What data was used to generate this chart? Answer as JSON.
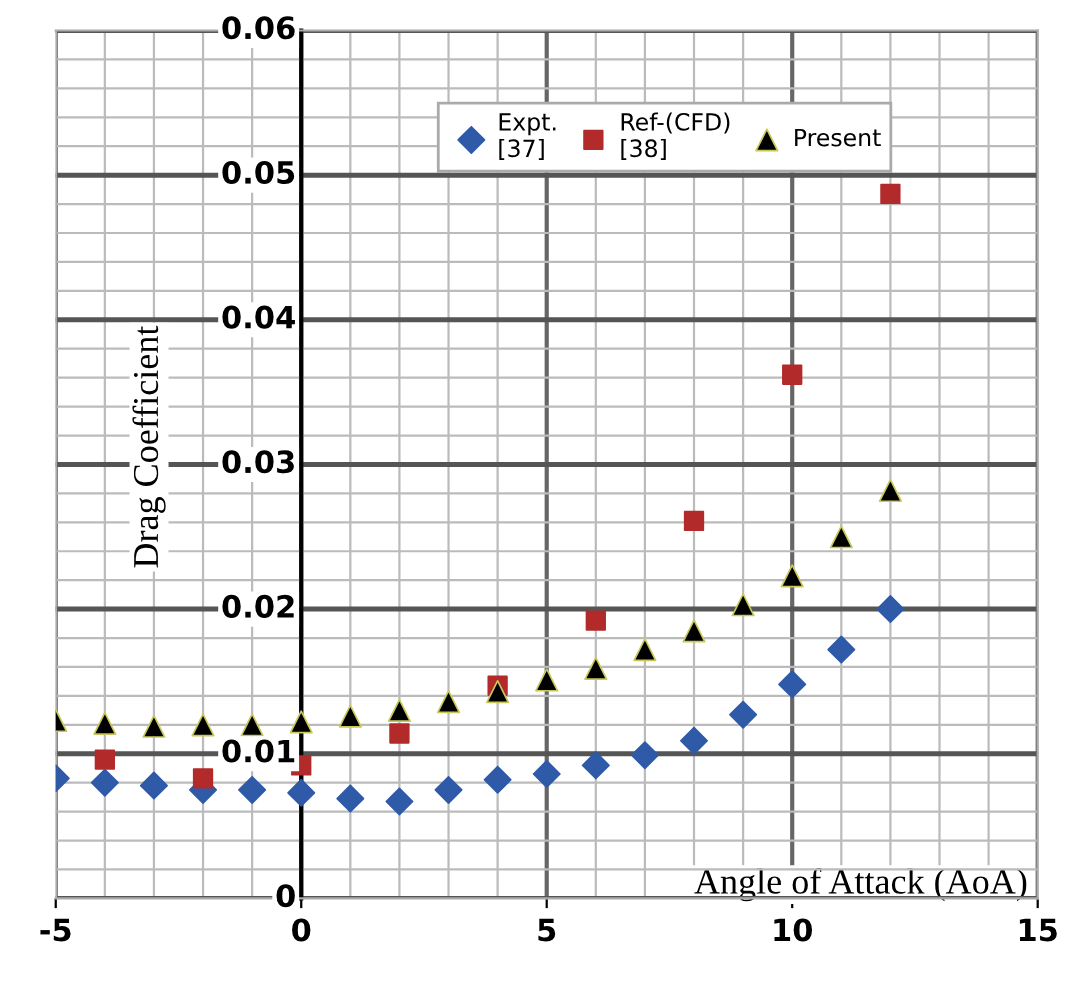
{
  "chart_data": {
    "type": "scatter",
    "xlabel": "Angle of Attack (AoA)",
    "ylabel": "Drag Coefficient",
    "xlim": [
      -5,
      15
    ],
    "ylim": [
      0,
      0.06
    ],
    "xticks": [
      -5,
      0,
      5,
      10,
      15
    ],
    "yticks": [
      0,
      0.01,
      0.02,
      0.03,
      0.04,
      0.05,
      0.06
    ],
    "grid": true,
    "legend": "top",
    "series": [
      {
        "name": "Expt.\n[37]",
        "color": "#2e5aa8",
        "marker": "diamond",
        "x": [
          -5,
          -4,
          -3,
          -2,
          -1,
          0,
          1,
          2,
          3,
          4,
          5,
          6,
          7,
          8,
          9,
          10,
          11,
          12
        ],
        "values": [
          0.0083,
          0.008,
          0.0078,
          0.0075,
          0.0075,
          0.0073,
          0.0069,
          0.0067,
          0.0075,
          0.0082,
          0.0086,
          0.0092,
          0.0099,
          0.0109,
          0.0127,
          0.0148,
          0.0172,
          0.02
        ]
      },
      {
        "name": "Ref-(CFD)\n[38]",
        "color": "#b22a2a",
        "marker": "square",
        "x": [
          -4,
          -2,
          0,
          2,
          4,
          6,
          8,
          10,
          12
        ],
        "values": [
          0.0096,
          0.0083,
          0.0092,
          0.0114,
          0.0147,
          0.0192,
          0.0261,
          0.0362,
          0.0487
        ]
      },
      {
        "name": "Present",
        "color": "#000000",
        "marker": "triangle",
        "x": [
          -5,
          -4,
          -3,
          -2,
          -1,
          0,
          1,
          2,
          3,
          4,
          5,
          6,
          7,
          8,
          9,
          10,
          11,
          12
        ],
        "values": [
          0.0123,
          0.0121,
          0.0119,
          0.012,
          0.012,
          0.0122,
          0.0126,
          0.013,
          0.0136,
          0.0143,
          0.0151,
          0.0159,
          0.0172,
          0.0185,
          0.0203,
          0.0223,
          0.025,
          0.0282
        ]
      }
    ]
  }
}
